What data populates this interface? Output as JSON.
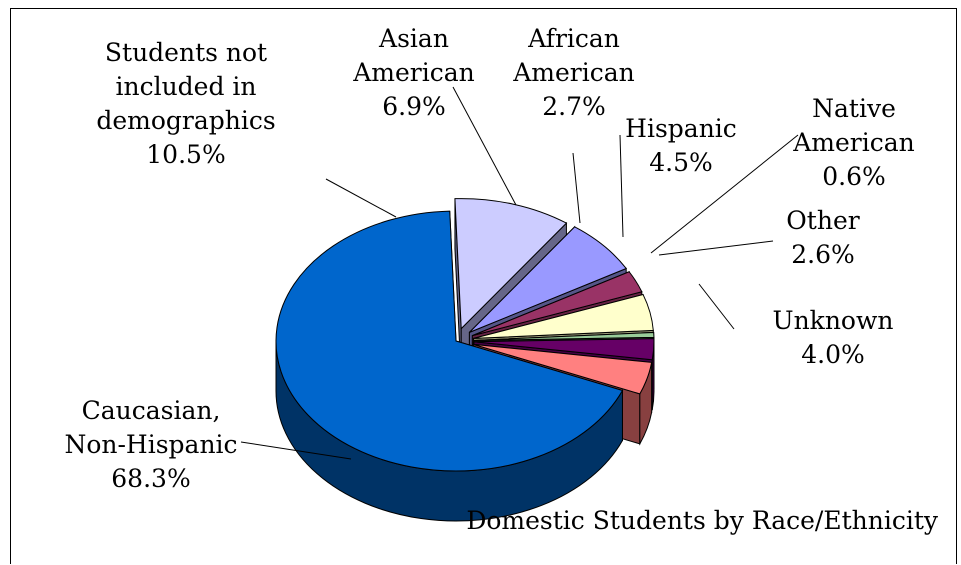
{
  "chart_data": {
    "type": "pie",
    "title": "Domestic Students by Race/Ethnicity",
    "style": "3d-exploded",
    "slices": [
      {
        "label_lines": [
          "Students not",
          "included in",
          "demographics"
        ],
        "value_text": "10.5%",
        "value": 10.5,
        "top_color": "#ccccff",
        "side_color": "#666688"
      },
      {
        "label_lines": [
          "Asian",
          "American"
        ],
        "value_text": "6.9%",
        "value": 6.9,
        "top_color": "#9999ff",
        "side_color": "#555588"
      },
      {
        "label_lines": [
          "African",
          "American"
        ],
        "value_text": "2.7%",
        "value": 2.7,
        "top_color": "#993366",
        "side_color": "#662244"
      },
      {
        "label_lines": [
          "Hispanic"
        ],
        "value_text": "4.5%",
        "value": 4.5,
        "top_color": "#ffffcc",
        "side_color": "#999977"
      },
      {
        "label_lines": [
          "Native",
          "American"
        ],
        "value_text": "0.6%",
        "value": 0.6,
        "top_color": "#99cc99",
        "side_color": "#556655"
      },
      {
        "label_lines": [
          "Other"
        ],
        "value_text": "2.6%",
        "value": 2.6,
        "top_color": "#660066",
        "side_color": "#440044"
      },
      {
        "label_lines": [
          "Unknown"
        ],
        "value_text": "4.0%",
        "value": 4.0,
        "top_color": "#ff8080",
        "side_color": "#884040"
      },
      {
        "label_lines": [
          "Caucasian,",
          "Non-Hispanic"
        ],
        "value_text": "68.3%",
        "value": 68.3,
        "top_color": "#0066cc",
        "side_color": "#003366"
      }
    ]
  }
}
